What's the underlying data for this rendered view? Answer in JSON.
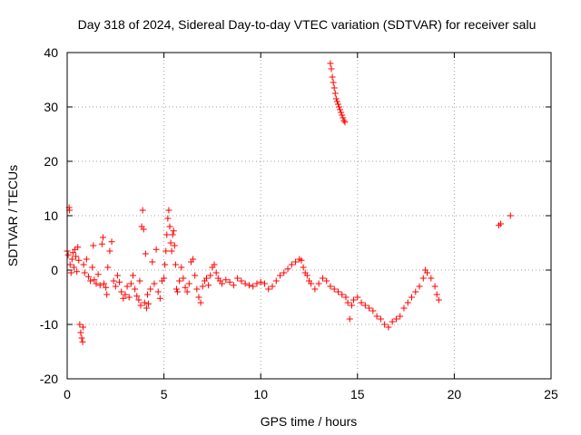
{
  "chart_data": {
    "type": "scatter",
    "title": "Day 318 of 2024, Sidereal Day-to-day VTEC variation (SDTVAR) for receiver salu",
    "xlabel": "GPS time / hours",
    "ylabel": "SDTVAR / TECUs",
    "xlim": [
      0,
      25
    ],
    "ylim": [
      -20,
      40
    ],
    "xticks": [
      0,
      5,
      10,
      15,
      20,
      25
    ],
    "yticks": [
      -20,
      -10,
      0,
      10,
      20,
      30,
      40
    ],
    "xtick_labels": [
      "0",
      "5",
      "10",
      "15",
      "20",
      "25"
    ],
    "ytick_labels": [
      "-20",
      "-10",
      "0",
      "10",
      "20",
      "30",
      "40"
    ],
    "grid": true,
    "marker": "plus",
    "color": "#ff0000",
    "series": [
      {
        "name": "SDTVAR",
        "points": [
          [
            0.0,
            3.5
          ],
          [
            0.05,
            2.8
          ],
          [
            0.1,
            11.5
          ],
          [
            0.12,
            11.0
          ],
          [
            0.15,
            1.0
          ],
          [
            0.2,
            -0.5
          ],
          [
            0.25,
            2.0
          ],
          [
            0.3,
            3.2
          ],
          [
            0.35,
            0.5
          ],
          [
            0.4,
            3.8
          ],
          [
            0.45,
            2.5
          ],
          [
            0.5,
            -0.3
          ],
          [
            0.55,
            4.2
          ],
          [
            0.6,
            1.8
          ],
          [
            0.65,
            -10.0
          ],
          [
            0.7,
            -11.5
          ],
          [
            0.75,
            -12.5
          ],
          [
            0.8,
            -13.2
          ],
          [
            0.82,
            -10.5
          ],
          [
            0.85,
            1.0
          ],
          [
            0.9,
            -0.5
          ],
          [
            1.0,
            2.0
          ],
          [
            1.1,
            -1.2
          ],
          [
            1.2,
            -2.0
          ],
          [
            1.3,
            0.5
          ],
          [
            1.35,
            4.5
          ],
          [
            1.4,
            -1.8
          ],
          [
            1.5,
            -2.5
          ],
          [
            1.6,
            -0.8
          ],
          [
            1.7,
            -2.8
          ],
          [
            1.8,
            4.8
          ],
          [
            1.85,
            6.0
          ],
          [
            1.9,
            -2.5
          ],
          [
            2.0,
            -3.2
          ],
          [
            2.05,
            -4.5
          ],
          [
            2.1,
            0.5
          ],
          [
            2.2,
            3.5
          ],
          [
            2.3,
            5.2
          ],
          [
            2.4,
            -2.0
          ],
          [
            2.5,
            -3.0
          ],
          [
            2.6,
            -1.0
          ],
          [
            2.7,
            -2.2
          ],
          [
            2.8,
            -4.0
          ],
          [
            2.9,
            -5.2
          ],
          [
            3.0,
            -4.5
          ],
          [
            3.1,
            -3.0
          ],
          [
            3.2,
            -5.0
          ],
          [
            3.3,
            -2.5
          ],
          [
            3.4,
            -1.0
          ],
          [
            3.5,
            -3.5
          ],
          [
            3.6,
            -4.8
          ],
          [
            3.7,
            -5.5
          ],
          [
            3.75,
            -2.0
          ],
          [
            3.8,
            -6.5
          ],
          [
            3.85,
            8.0
          ],
          [
            3.9,
            11.0
          ],
          [
            3.95,
            7.5
          ],
          [
            4.0,
            -6.0
          ],
          [
            4.05,
            3.0
          ],
          [
            4.1,
            -7.0
          ],
          [
            4.15,
            -4.5
          ],
          [
            4.2,
            -6.2
          ],
          [
            4.3,
            -3.5
          ],
          [
            4.4,
            1.5
          ],
          [
            4.5,
            -2.5
          ],
          [
            4.6,
            3.8
          ],
          [
            4.7,
            -4.0
          ],
          [
            4.8,
            -5.2
          ],
          [
            4.9,
            -2.0
          ],
          [
            5.0,
            -1.5
          ],
          [
            5.05,
            1.0
          ],
          [
            5.1,
            3.5
          ],
          [
            5.15,
            6.5
          ],
          [
            5.2,
            9.5
          ],
          [
            5.25,
            11.0
          ],
          [
            5.3,
            8.0
          ],
          [
            5.35,
            5.0
          ],
          [
            5.4,
            3.5
          ],
          [
            5.45,
            6.5
          ],
          [
            5.5,
            7.2
          ],
          [
            5.55,
            4.5
          ],
          [
            5.6,
            1.0
          ],
          [
            5.65,
            -3.5
          ],
          [
            5.7,
            -4.0
          ],
          [
            5.8,
            -2.0
          ],
          [
            5.9,
            0.5
          ],
          [
            6.0,
            -1.5
          ],
          [
            6.1,
            -3.2
          ],
          [
            6.2,
            -4.0
          ],
          [
            6.3,
            -2.5
          ],
          [
            6.4,
            1.5
          ],
          [
            6.5,
            2.0
          ],
          [
            6.6,
            -1.0
          ],
          [
            6.7,
            -3.5
          ],
          [
            6.8,
            -5.0
          ],
          [
            6.9,
            -6.0
          ],
          [
            7.0,
            -3.0
          ],
          [
            7.1,
            -2.0
          ],
          [
            7.2,
            -1.5
          ],
          [
            7.3,
            -2.8
          ],
          [
            7.4,
            -1.0
          ],
          [
            7.5,
            0.5
          ],
          [
            7.6,
            1.0
          ],
          [
            7.7,
            -0.5
          ],
          [
            7.8,
            -1.5
          ],
          [
            7.9,
            -2.0
          ],
          [
            8.0,
            -2.5
          ],
          [
            8.2,
            -1.8
          ],
          [
            8.4,
            -2.2
          ],
          [
            8.6,
            -2.8
          ],
          [
            8.8,
            -1.5
          ],
          [
            9.0,
            -2.0
          ],
          [
            9.2,
            -2.5
          ],
          [
            9.4,
            -2.8
          ],
          [
            9.6,
            -3.0
          ],
          [
            9.8,
            -2.5
          ],
          [
            10.0,
            -2.2
          ],
          [
            10.2,
            -2.5
          ],
          [
            10.4,
            -3.5
          ],
          [
            10.6,
            -3.0
          ],
          [
            10.8,
            -2.0
          ],
          [
            11.0,
            -1.0
          ],
          [
            11.2,
            -0.5
          ],
          [
            11.4,
            0.2
          ],
          [
            11.6,
            1.0
          ],
          [
            11.8,
            1.5
          ],
          [
            12.0,
            2.0
          ],
          [
            12.1,
            1.8
          ],
          [
            12.2,
            0.5
          ],
          [
            12.3,
            -0.5
          ],
          [
            12.4,
            -1.0
          ],
          [
            12.5,
            -2.0
          ],
          [
            12.6,
            -2.5
          ],
          [
            12.8,
            -3.5
          ],
          [
            13.0,
            -2.5
          ],
          [
            13.2,
            -1.5
          ],
          [
            13.4,
            -2.0
          ],
          [
            13.6,
            -3.0
          ],
          [
            13.8,
            -3.5
          ],
          [
            14.0,
            -4.0
          ],
          [
            14.2,
            -4.5
          ],
          [
            14.4,
            -5.0
          ],
          [
            14.5,
            -6.0
          ],
          [
            14.6,
            -9.0
          ],
          [
            14.7,
            -6.5
          ],
          [
            14.8,
            -5.5
          ],
          [
            15.0,
            -5.0
          ],
          [
            15.2,
            -6.0
          ],
          [
            15.4,
            -6.5
          ],
          [
            15.6,
            -7.0
          ],
          [
            15.8,
            -7.5
          ],
          [
            16.0,
            -8.5
          ],
          [
            16.2,
            -9.0
          ],
          [
            16.4,
            -10.0
          ],
          [
            16.6,
            -10.5
          ],
          [
            16.8,
            -9.5
          ],
          [
            17.0,
            -9.0
          ],
          [
            17.2,
            -8.5
          ],
          [
            17.4,
            -7.0
          ],
          [
            17.6,
            -6.0
          ],
          [
            17.8,
            -5.0
          ],
          [
            18.0,
            -4.0
          ],
          [
            18.2,
            -3.0
          ],
          [
            18.4,
            -1.5
          ],
          [
            18.5,
            0.0
          ],
          [
            18.6,
            -0.5
          ],
          [
            18.8,
            -1.5
          ],
          [
            19.0,
            -3.0
          ],
          [
            19.1,
            -4.5
          ],
          [
            19.2,
            -5.5
          ],
          [
            13.6,
            38.0
          ],
          [
            13.65,
            37.0
          ],
          [
            13.7,
            35.5
          ],
          [
            13.75,
            34.5
          ],
          [
            13.8,
            33.5
          ],
          [
            13.85,
            32.5
          ],
          [
            13.9,
            31.5
          ],
          [
            13.95,
            31.0
          ],
          [
            14.0,
            30.5
          ],
          [
            14.05,
            30.0
          ],
          [
            14.1,
            29.5
          ],
          [
            14.15,
            29.0
          ],
          [
            14.2,
            28.5
          ],
          [
            14.25,
            28.0
          ],
          [
            14.3,
            27.5
          ],
          [
            14.35,
            27.2
          ],
          [
            22.3,
            8.2
          ],
          [
            22.4,
            8.5
          ],
          [
            22.9,
            10.0
          ]
        ]
      }
    ]
  }
}
